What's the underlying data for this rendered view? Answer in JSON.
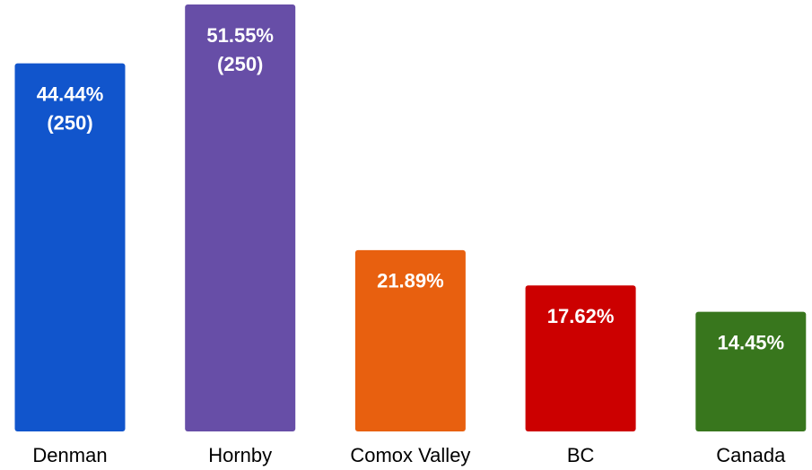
{
  "chart_data": {
    "type": "bar",
    "categories": [
      "Denman",
      "Hornby",
      "Comox Valley",
      "BC",
      "Canada"
    ],
    "values": [
      44.44,
      51.55,
      21.89,
      17.62,
      14.45
    ],
    "value_labels": [
      "44.44%",
      "51.55%",
      "21.89%",
      "17.62%",
      "14.45%"
    ],
    "count_labels": [
      "(250)",
      "(250)",
      null,
      null,
      null
    ],
    "colors": [
      "#1155cc",
      "#674ea7",
      "#e8600f",
      "#cc0000",
      "#38761d"
    ],
    "ylim": [
      0,
      51.55
    ]
  }
}
